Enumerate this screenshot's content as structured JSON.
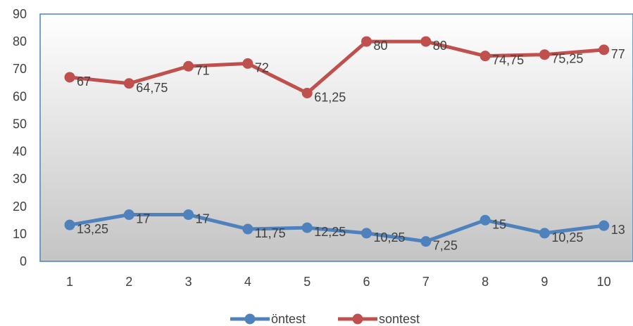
{
  "chart_data": {
    "type": "line",
    "categories": [
      "1",
      "2",
      "3",
      "4",
      "5",
      "6",
      "7",
      "8",
      "9",
      "10"
    ],
    "series": [
      {
        "name": "öntest",
        "color": "#4f81bd",
        "values": [
          13.25,
          17,
          17,
          11.75,
          12.25,
          10.25,
          7.25,
          15,
          10.25,
          13
        ],
        "labels": [
          "13,25",
          "17",
          "17",
          "11,75",
          "12,25",
          "10,25",
          "7,25",
          "15",
          "10,25",
          "13"
        ]
      },
      {
        "name": "sontest",
        "color": "#c0504d",
        "values": [
          67,
          64.75,
          71,
          72,
          61.25,
          80,
          80,
          74.75,
          75.25,
          77
        ],
        "labels": [
          "67",
          "64,75",
          "71",
          "72",
          "61,25",
          "80",
          "80",
          "74,75",
          "75,25",
          "77"
        ]
      }
    ],
    "ylim": [
      0,
      90
    ],
    "yticks": [
      "0",
      "10",
      "20",
      "30",
      "40",
      "50",
      "60",
      "70",
      "80",
      "90"
    ],
    "grid": false,
    "legend": "bottom",
    "plot_background": "gradient-gray"
  }
}
